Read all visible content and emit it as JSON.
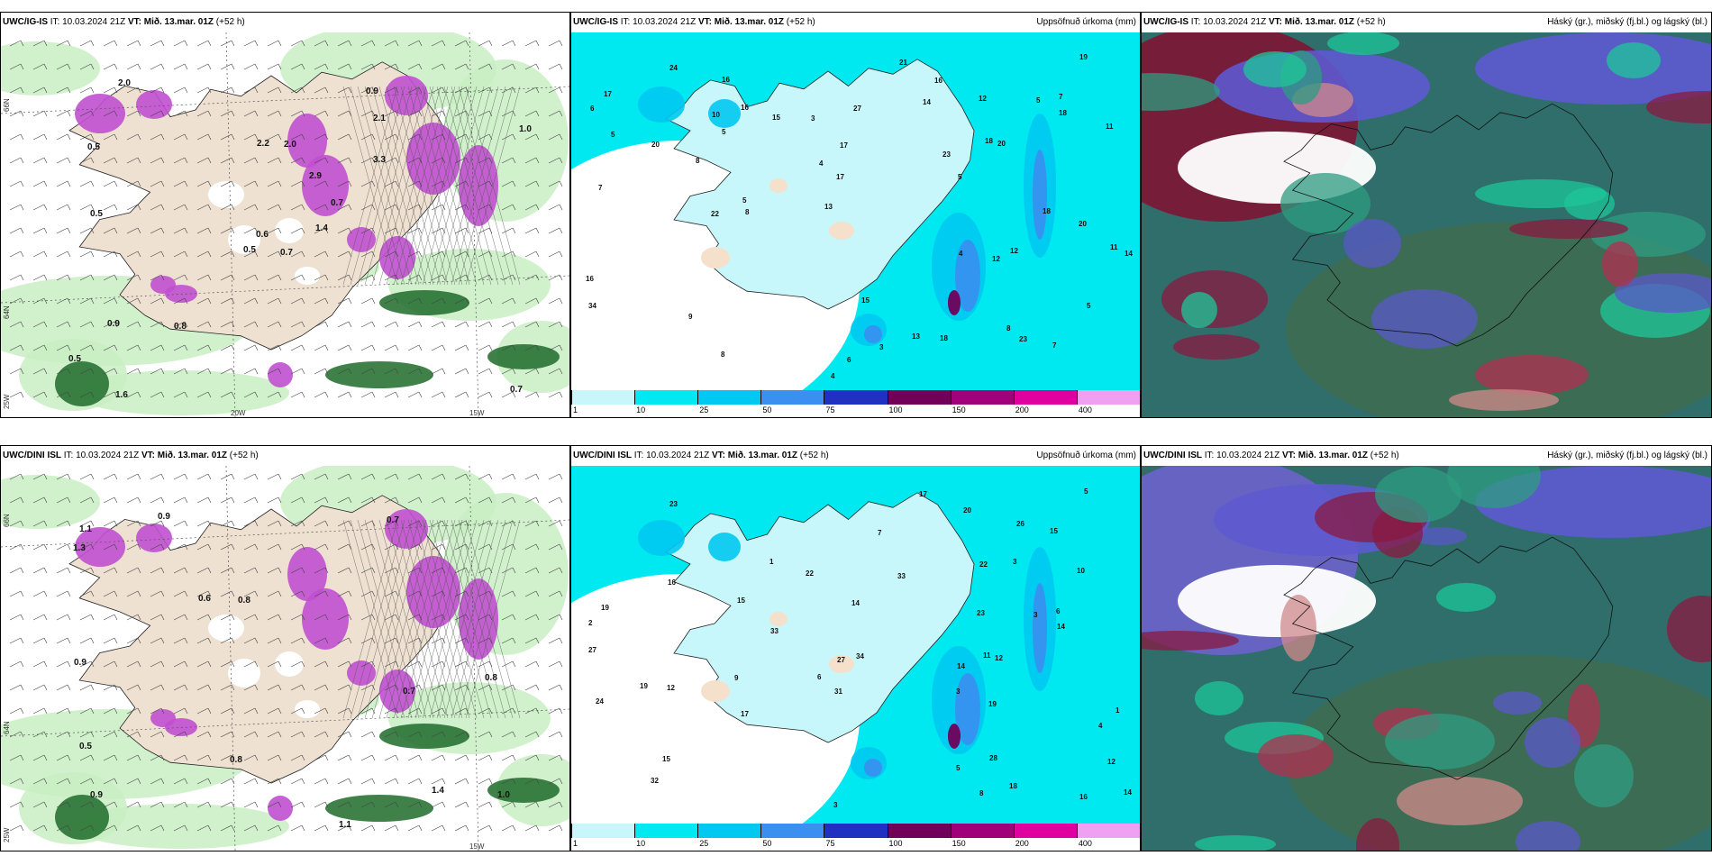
{
  "rows": [
    {
      "model": "UWC/IG-IS",
      "it_label": "IT:",
      "it_value": "10.03.2024 21Z",
      "vt_label": "VT:",
      "vt_value": "Mið. 13.mar. 01Z",
      "lead": "(+52 h)",
      "precip_title": "Uppsöfnuð úrkoma (mm)",
      "cloud_title": "Háský (gr.), miðský (fj.bl.) og lágský (bl.)",
      "axis_left": [
        "66N",
        "64N",
        "25W"
      ],
      "axis_bottom": [
        "20W",
        "15W"
      ],
      "axis_right_mid": "66N",
      "wind_values": [
        "0.7",
        "0.5",
        "0.6",
        "0.5",
        "0.7",
        "0.8",
        "0.9",
        "2.0",
        "2.1",
        "1.4",
        "2.0",
        "0.7",
        "0.5",
        "1.0",
        "0.5",
        "3.3",
        "1.6",
        "2.2",
        "2.9",
        "0.9"
      ],
      "precip_values": [
        "5",
        "5",
        "5",
        "6",
        "5",
        "4",
        "4",
        "8",
        "7",
        "14",
        "11",
        "16",
        "18",
        "9",
        "7",
        "8",
        "5",
        "3",
        "7",
        "13",
        "23",
        "20",
        "17",
        "15",
        "12",
        "8",
        "18",
        "16",
        "24",
        "22",
        "16",
        "18",
        "19",
        "20",
        "17",
        "16",
        "15",
        "14",
        "21",
        "34",
        "20",
        "10",
        "4",
        "8",
        "3",
        "11",
        "6",
        "18",
        "5",
        "12",
        "17",
        "23",
        "13",
        "12",
        "27"
      ]
    },
    {
      "model": "UWC/DINI ISL",
      "it_label": "IT:",
      "it_value": "10.03.2024 21Z",
      "vt_label": "VT:",
      "vt_value": "Mið. 13.mar. 01Z",
      "lead": "(+52 h)",
      "precip_title": "Uppsöfnuð úrkoma (mm)",
      "cloud_title": "Háský (gr.), miðský (fj.bl.) og lágský (bl.)",
      "axis_left": [
        "66N",
        "64N",
        "25W"
      ],
      "axis_bottom": [
        "15W"
      ],
      "axis_right_mid": "66N",
      "wind_values": [
        "0.7",
        "0.8",
        "0.9",
        "0.9",
        "0.8",
        "1.4",
        "0.5",
        "0.7",
        "0.6",
        "1.1",
        "1.3",
        "0.9",
        "1.1",
        "1.0",
        "0.8"
      ],
      "precip_values": [
        "3",
        "1",
        "3",
        "4",
        "5",
        "3",
        "6",
        "14",
        "12",
        "18",
        "11",
        "14",
        "24",
        "19",
        "17",
        "16",
        "15",
        "19",
        "26",
        "22",
        "31",
        "27",
        "23",
        "20",
        "14",
        "15",
        "16",
        "22",
        "14",
        "12",
        "10",
        "17",
        "19",
        "28",
        "33",
        "32",
        "33",
        "34",
        "12",
        "8",
        "6",
        "9",
        "7",
        "3",
        "2",
        "1",
        "5",
        "15",
        "27",
        "23"
      ]
    }
  ],
  "colorbar": {
    "ticks": [
      "1",
      "10",
      "25",
      "50",
      "75",
      "100",
      "150",
      "200",
      "400"
    ],
    "colors": [
      "#c8f7fb",
      "#00e8f0",
      "#00c8f0",
      "#3a8ff0",
      "#2030c0",
      "#700058",
      "#a0007a",
      "#e000a0",
      "#f0a0f0"
    ]
  }
}
